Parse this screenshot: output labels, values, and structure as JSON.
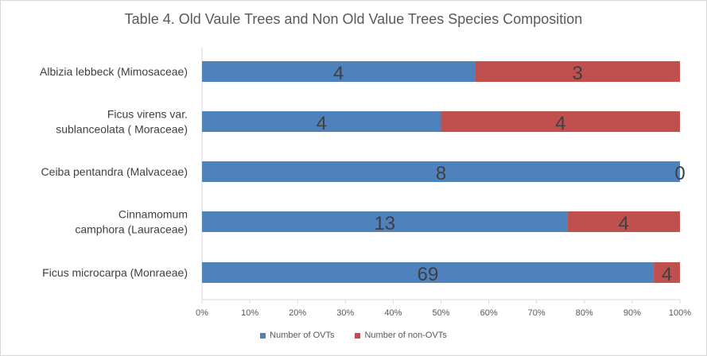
{
  "chart_data": {
    "type": "bar",
    "orientation": "horizontal",
    "stacking": "percent",
    "title": "Table 4. Old Vaule Trees and Non Old Value Trees Species Composition",
    "categories": [
      [
        "Albizia lebbeck (Mimosaceae)"
      ],
      [
        "Ficus virens var.",
        "sublanceolata ( Moraceae)"
      ],
      [
        "Ceiba pentandra (Malvaceae)"
      ],
      [
        "Cinnamomum",
        "camphora  (Lauraceae)"
      ],
      [
        "Ficus microcarpa (Monraeae)"
      ]
    ],
    "series": [
      {
        "name": "Number of OVTs",
        "values": [
          4,
          4,
          8,
          13,
          69
        ],
        "color": "#4f81bd"
      },
      {
        "name": "Number of non-OVTs",
        "values": [
          3,
          4,
          0,
          4,
          4
        ],
        "color": "#c0504d"
      }
    ],
    "x_ticks": [
      "0%",
      "10%",
      "20%",
      "30%",
      "40%",
      "50%",
      "60%",
      "70%",
      "80%",
      "90%",
      "100%"
    ],
    "xlim": [
      0,
      100
    ],
    "grid": false,
    "legend_position": "bottom"
  }
}
